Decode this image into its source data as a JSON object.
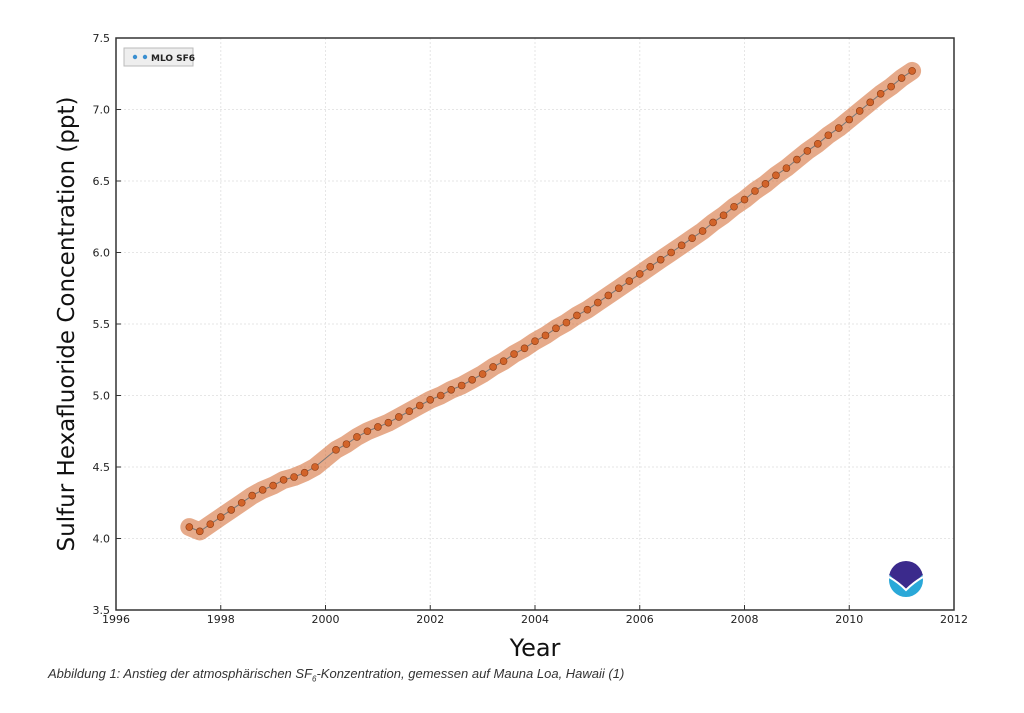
{
  "chart_data": {
    "type": "scatter",
    "title": "",
    "xlabel": "Year",
    "ylabel": "Sulfur Hexafluoride Concentration (ppt)",
    "xlim": [
      1996,
      2012
    ],
    "ylim": [
      3.5,
      7.5
    ],
    "xticks": [
      "1996",
      "1998",
      "2000",
      "2002",
      "2004",
      "2006",
      "2008",
      "2010",
      "2012"
    ],
    "yticks": [
      "3.5",
      "4.0",
      "4.5",
      "5.0",
      "5.5",
      "6.0",
      "6.5",
      "7.0",
      "7.5"
    ],
    "grid": true,
    "legend": {
      "position": "top-left",
      "entries": [
        "MLO SF6"
      ]
    },
    "series": [
      {
        "name": "MLO SF6",
        "color": "#d2642a",
        "marker_legend_color": "#3a8fd0",
        "points": [
          [
            1997.4,
            4.08
          ],
          [
            1997.6,
            4.05
          ],
          [
            1997.8,
            4.1
          ],
          [
            1998.0,
            4.15
          ],
          [
            1998.2,
            4.2
          ],
          [
            1998.4,
            4.25
          ],
          [
            1998.6,
            4.3
          ],
          [
            1998.8,
            4.34
          ],
          [
            1999.0,
            4.37
          ],
          [
            1999.2,
            4.41
          ],
          [
            1999.4,
            4.43
          ],
          [
            1999.6,
            4.46
          ],
          [
            1999.8,
            4.5
          ],
          [
            2000.2,
            4.62
          ],
          [
            2000.4,
            4.66
          ],
          [
            2000.6,
            4.71
          ],
          [
            2000.8,
            4.75
          ],
          [
            2001.0,
            4.78
          ],
          [
            2001.2,
            4.81
          ],
          [
            2001.4,
            4.85
          ],
          [
            2001.6,
            4.89
          ],
          [
            2001.8,
            4.93
          ],
          [
            2002.0,
            4.97
          ],
          [
            2002.2,
            5.0
          ],
          [
            2002.4,
            5.04
          ],
          [
            2002.6,
            5.07
          ],
          [
            2002.8,
            5.11
          ],
          [
            2003.0,
            5.15
          ],
          [
            2003.2,
            5.2
          ],
          [
            2003.4,
            5.24
          ],
          [
            2003.6,
            5.29
          ],
          [
            2003.8,
            5.33
          ],
          [
            2004.0,
            5.38
          ],
          [
            2004.2,
            5.42
          ],
          [
            2004.4,
            5.47
          ],
          [
            2004.6,
            5.51
          ],
          [
            2004.8,
            5.56
          ],
          [
            2005.0,
            5.6
          ],
          [
            2005.2,
            5.65
          ],
          [
            2005.4,
            5.7
          ],
          [
            2005.6,
            5.75
          ],
          [
            2005.8,
            5.8
          ],
          [
            2006.0,
            5.85
          ],
          [
            2006.2,
            5.9
          ],
          [
            2006.4,
            5.95
          ],
          [
            2006.6,
            6.0
          ],
          [
            2006.8,
            6.05
          ],
          [
            2007.0,
            6.1
          ],
          [
            2007.2,
            6.15
          ],
          [
            2007.4,
            6.21
          ],
          [
            2007.6,
            6.26
          ],
          [
            2007.8,
            6.32
          ],
          [
            2008.0,
            6.37
          ],
          [
            2008.2,
            6.43
          ],
          [
            2008.4,
            6.48
          ],
          [
            2008.6,
            6.54
          ],
          [
            2008.8,
            6.59
          ],
          [
            2009.0,
            6.65
          ],
          [
            2009.2,
            6.71
          ],
          [
            2009.4,
            6.76
          ],
          [
            2009.6,
            6.82
          ],
          [
            2009.8,
            6.87
          ],
          [
            2010.0,
            6.93
          ],
          [
            2010.2,
            6.99
          ],
          [
            2010.4,
            7.05
          ],
          [
            2010.6,
            7.11
          ],
          [
            2010.8,
            7.16
          ],
          [
            2011.0,
            7.22
          ],
          [
            2011.2,
            7.27
          ]
        ]
      }
    ]
  },
  "logo": {
    "name": "NOAA",
    "colors": [
      "#3b2a8c",
      "#2aa8d8"
    ]
  },
  "caption": {
    "prefix": "Abbildung 1: Anstieg der atmosphärischen SF",
    "subscript": "6",
    "suffix": "-Konzentration, gemessen auf Mauna Loa, Hawaii  (1)"
  }
}
